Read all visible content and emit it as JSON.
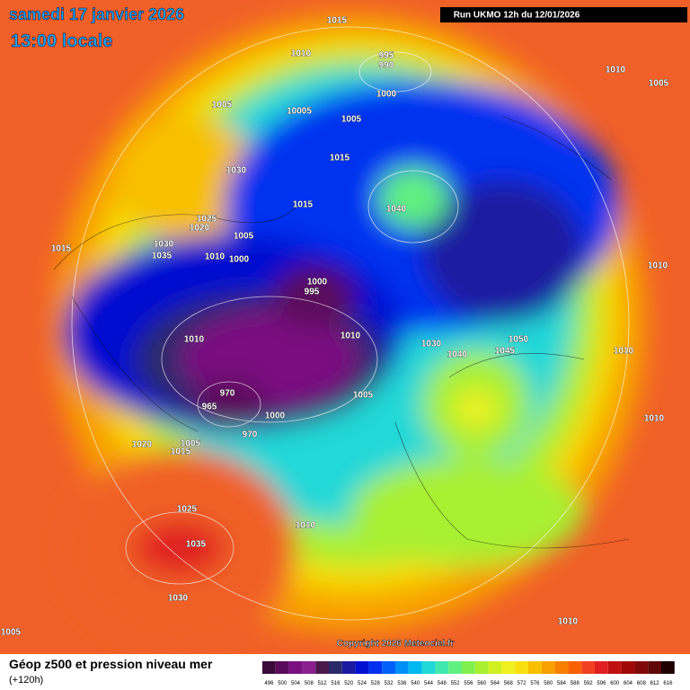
{
  "header": {
    "date": "samedi 17 janvier 2026",
    "time": "13:00 locale",
    "run": "Run UKMO 12h du 12/01/2026"
  },
  "isobar_labels": [
    1015,
    1010,
    995,
    990,
    1000,
    1005,
    10005,
    1005,
    1015,
    1030,
    1015,
    1040,
    1025,
    1020,
    1005,
    1030,
    1015,
    1035,
    1010,
    1000,
    1000,
    995,
    1010,
    1010,
    1010,
    1005,
    1010,
    1010,
    1050,
    1045,
    1040,
    1030,
    970,
    965,
    1005,
    1000,
    970,
    1020,
    1005,
    1015,
    1010,
    1025,
    1035,
    1010,
    1030,
    1010,
    1005
  ],
  "copyright": "Copyright 2026 Meteociel.fr",
  "legend": {
    "title": "Géop z500 et pression niveau mer",
    "lead": "(+120h)",
    "labels": [
      496,
      500,
      504,
      508,
      512,
      516,
      520,
      524,
      528,
      532,
      536,
      540,
      544,
      548,
      552,
      556,
      560,
      564,
      568,
      572,
      576,
      580,
      584,
      588,
      592,
      596,
      600,
      604,
      608,
      612,
      616
    ],
    "colors": [
      "#3a0a3a",
      "#5a0a5a",
      "#7a1080",
      "#8a2090",
      "#4a1a4a",
      "#2a2a6a",
      "#1a1aa0",
      "#0010d0",
      "#0030f0",
      "#0060f8",
      "#0090f8",
      "#00b8f0",
      "#20d8d8",
      "#40e8b0",
      "#60f080",
      "#80f050",
      "#a8f030",
      "#d0f020",
      "#f0f020",
      "#f8e010",
      "#f8c000",
      "#f8a000",
      "#f88000",
      "#f86000",
      "#f04020",
      "#e02020",
      "#c01010",
      "#a00808",
      "#800808",
      "#600808",
      "#200000"
    ]
  }
}
